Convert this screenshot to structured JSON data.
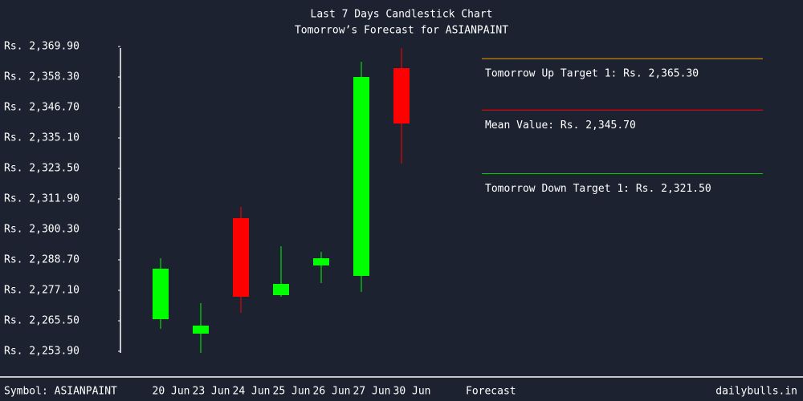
{
  "chart_data": {
    "type": "candlestick",
    "title": "Last 7 Days Candlestick Chart",
    "subtitle": "Tomorrow’s Forecast for ASIANPAINT",
    "categories": [
      "20 Jun",
      "23 Jun",
      "24 Jun",
      "25 Jun",
      "26 Jun",
      "27 Jun",
      "30 Jun"
    ],
    "open": [
      2266.11,
      2260.62,
      2304.57,
      2275.27,
      2286.57,
      2282.6,
      2361.66
    ],
    "high": [
      2289.31,
      2272.22,
      2308.85,
      2293.89,
      2291.75,
      2364.1,
      2369.29
    ],
    "low": [
      2262.45,
      2253.29,
      2268.55,
      2274.66,
      2279.85,
      2276.49,
      2325.33
    ],
    "close": [
      2285.34,
      2263.67,
      2274.66,
      2279.54,
      2289.31,
      2358.3,
      2340.6
    ],
    "up_color": "#00ff00",
    "down_color": "#ff0000",
    "ylim": [
      2253.9,
      2369.9
    ],
    "yticks": [
      {
        "value": 2369.9,
        "label": "Rs. 2,369.90"
      },
      {
        "value": 2358.3,
        "label": "Rs. 2,358.30"
      },
      {
        "value": 2346.7,
        "label": "Rs. 2,346.70"
      },
      {
        "value": 2335.1,
        "label": "Rs. 2,335.10"
      },
      {
        "value": 2323.5,
        "label": "Rs. 2,323.50"
      },
      {
        "value": 2311.9,
        "label": "Rs. 2,311.90"
      },
      {
        "value": 2300.3,
        "label": "Rs. 2,300.30"
      },
      {
        "value": 2288.7,
        "label": "Rs. 2,288.70"
      },
      {
        "value": 2277.1,
        "label": "Rs. 2,277.10"
      },
      {
        "value": 2265.5,
        "label": "Rs. 2,265.50"
      },
      {
        "value": 2253.9,
        "label": "Rs. 2,253.90"
      }
    ],
    "forecast": [
      {
        "value": 2365.3,
        "label": "Tomorrow Up Target 1: Rs. 2,365.30",
        "color": "#ff9900"
      },
      {
        "value": 2345.7,
        "label": "Mean Value: Rs. 2,345.70",
        "color": "#ff0000"
      },
      {
        "value": 2321.5,
        "label": "Tomorrow Down Target 1: Rs. 2,321.50",
        "color": "#00cc00"
      }
    ],
    "forecast_label": "Forecast",
    "symbol_label": "Symbol: ASIANPAINT",
    "source": "dailybulls.in"
  }
}
